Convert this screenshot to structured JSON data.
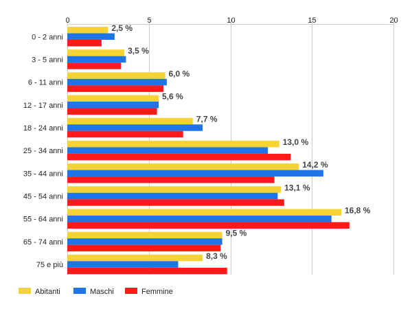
{
  "chart_data": {
    "type": "bar",
    "orientation": "horizontal",
    "categories": [
      "0 - 2 anni",
      "3 - 5 anni",
      "6 - 11 anni",
      "12 - 17 anni",
      "18 - 24 anni",
      "25 - 34 anni",
      "35 - 44 anni",
      "45 - 54 anni",
      "55 - 64 anni",
      "65 - 74 anni",
      "75 e più"
    ],
    "series": [
      {
        "name": "Abitanti",
        "color": "#f5d335",
        "values": [
          2.5,
          3.5,
          6.0,
          5.6,
          7.7,
          13.0,
          14.2,
          13.1,
          16.8,
          9.5,
          8.3
        ]
      },
      {
        "name": "Maschi",
        "color": "#1f74e8",
        "values": [
          2.9,
          3.6,
          6.1,
          5.6,
          8.3,
          12.3,
          15.7,
          12.9,
          16.2,
          9.5,
          6.8
        ]
      },
      {
        "name": "Femmine",
        "color": "#ff1a1a",
        "values": [
          2.1,
          3.3,
          5.9,
          5.5,
          7.1,
          13.7,
          12.7,
          13.3,
          17.3,
          9.4,
          9.8
        ]
      }
    ],
    "data_labels": [
      "2,5 %",
      "3,5 %",
      "6,0 %",
      "5,6 %",
      "7,7 %",
      "13,0 %",
      "14,2 %",
      "13,1 %",
      "16,8 %",
      "9,5 %",
      "8,3 %"
    ],
    "xlim": [
      0,
      20
    ],
    "xticks": [
      0,
      5,
      10,
      15,
      20
    ],
    "xtick_labels": [
      "0",
      "5",
      "10",
      "15",
      "20"
    ],
    "axis_position": "top",
    "grid": true,
    "legend_position": "bottom-left"
  }
}
